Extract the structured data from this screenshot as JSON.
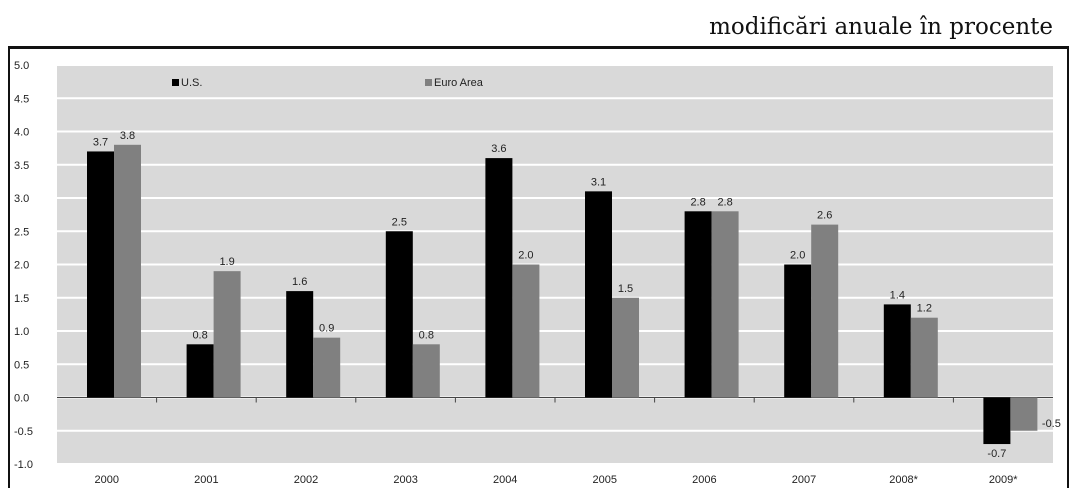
{
  "header": {
    "unit_note": "modificări anuale în procente"
  },
  "colors": {
    "plot_background": "#d9d9d9",
    "grid": "#ffffff",
    "us_series": "#000000",
    "euro_series": "#808080",
    "axis": "#444444"
  },
  "chart_data": {
    "type": "bar",
    "title": "",
    "xlabel": "",
    "ylabel": "",
    "categories": [
      "2000",
      "2001",
      "2002",
      "2003",
      "2004",
      "2005",
      "2006",
      "2007",
      "2008*",
      "2009*"
    ],
    "series": [
      {
        "name": "U.S.",
        "values": [
          3.7,
          0.8,
          1.6,
          2.5,
          3.6,
          3.1,
          2.8,
          2.0,
          1.4,
          -0.7
        ],
        "color": "#000000"
      },
      {
        "name": "Euro Area",
        "values": [
          3.8,
          1.9,
          0.9,
          0.8,
          2.0,
          1.5,
          2.8,
          2.6,
          1.2,
          -0.5
        ],
        "color": "#808080"
      }
    ],
    "y_ticks": [
      "5.0",
      "4.5",
      "4.0",
      "3.5",
      "3.0",
      "2.5",
      "2.0",
      "1.5",
      "1.0",
      "0.5",
      "0.0",
      "-0.5",
      "-1.0"
    ],
    "ylim": [
      -1.0,
      5.0
    ],
    "grid": true,
    "legend_position": "top-left"
  }
}
